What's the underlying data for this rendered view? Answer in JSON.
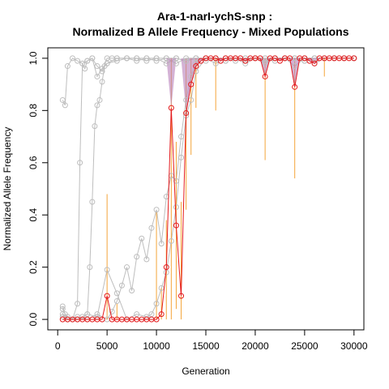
{
  "chart_data": {
    "type": "line",
    "title_line1": "Ara-1-narI-ychS-snp :",
    "title_line2": "Normalized B Allele Frequency - Mixed Populations",
    "xlabel": "Generation",
    "ylabel": "Normalized Allele Frequency",
    "xlim": [
      -1000,
      31000
    ],
    "ylim": [
      -0.04,
      1.04
    ],
    "x_ticks": [
      0,
      5000,
      10000,
      15000,
      20000,
      25000,
      30000
    ],
    "y_ticks": [
      0.0,
      0.2,
      0.4,
      0.6,
      0.8,
      1.0
    ],
    "colors": {
      "background_series": "#bebebe",
      "focus_series": "#e41a1c",
      "error_bars": "#f4a53a",
      "difference_fill": "#b77fb9"
    },
    "series": [
      {
        "role": "background",
        "x": [
          500,
          750,
          1000,
          1500,
          2000,
          2500,
          3000,
          3500,
          4000,
          4500,
          5000,
          5500,
          6000,
          7000,
          8000,
          9000,
          10000,
          11000,
          12000,
          13000,
          14000,
          15000,
          16000,
          17000,
          18000,
          19000,
          20000,
          21000,
          22000,
          23000,
          24000,
          25000,
          26000,
          27000,
          28000,
          29000,
          30000
        ],
        "values": [
          0.84,
          0.82,
          0.97,
          1.0,
          0.99,
          0.98,
          0.99,
          1.0,
          0.97,
          0.95,
          1.0,
          1.0,
          1.0,
          1.0,
          1.0,
          0.99,
          1.0,
          0.98,
          1.0,
          0.99,
          1.0,
          1.0,
          1.0,
          0.99,
          1.0,
          0.98,
          1.0,
          1.0,
          0.99,
          1.0,
          1.0,
          0.99,
          1.0,
          1.0,
          1.0,
          1.0,
          1.0
        ]
      },
      {
        "role": "background",
        "x": [
          500,
          750,
          1000,
          1500,
          2000,
          2250,
          2500,
          2750,
          3000,
          3500,
          4000,
          4500,
          5000,
          6000,
          7000,
          8000,
          9000,
          10000,
          11000,
          12000,
          13000,
          14000,
          15000,
          16000,
          17000,
          18000,
          19000,
          20000,
          21000,
          22000,
          23000,
          24000,
          25000,
          26000,
          27000,
          28000,
          29000,
          30000
        ],
        "values": [
          0.05,
          0.02,
          0.01,
          0.0,
          0.06,
          0.6,
          0.98,
          0.96,
          0.99,
          1.0,
          0.93,
          0.96,
          0.98,
          0.99,
          1.0,
          1.0,
          1.0,
          0.99,
          1.0,
          1.0,
          0.99,
          1.0,
          1.0,
          1.0,
          1.0,
          0.99,
          1.0,
          1.0,
          0.99,
          1.0,
          1.0,
          1.0,
          1.0,
          0.98,
          1.0,
          1.0,
          1.0,
          1.0
        ]
      },
      {
        "role": "background",
        "x": [
          500,
          1000,
          2000,
          2500,
          3000,
          3250,
          3500,
          3750,
          4000,
          4250,
          4500,
          4750,
          5000,
          6000,
          7000,
          8000,
          9000,
          10000,
          11000,
          12000,
          13000,
          14000,
          15000,
          16000,
          17000,
          18000,
          19000,
          20000,
          21000,
          22000,
          23000,
          24000,
          25000,
          26000,
          27000,
          28000,
          29000,
          30000
        ],
        "values": [
          0.04,
          0.0,
          0.0,
          0.01,
          0.02,
          0.2,
          0.45,
          0.74,
          0.82,
          0.84,
          0.91,
          0.97,
          0.98,
          1.0,
          1.0,
          0.99,
          1.0,
          1.0,
          1.0,
          0.98,
          1.0,
          1.0,
          0.99,
          1.0,
          1.0,
          1.0,
          0.99,
          1.0,
          1.0,
          1.0,
          1.0,
          1.0,
          0.99,
          1.0,
          1.0,
          1.0,
          1.0,
          1.0
        ]
      },
      {
        "role": "background",
        "x": [
          500,
          1000,
          2000,
          3000,
          4000,
          5000,
          5500,
          6000,
          6500,
          7000,
          7500,
          8000,
          8500,
          9000,
          9500,
          10000,
          10500,
          11000,
          11500,
          12000,
          12500,
          13000,
          13500,
          14000,
          14500,
          15000,
          16000,
          17000,
          18000,
          19000,
          20000,
          21000,
          22000,
          23000,
          24000,
          25000,
          26000,
          27000,
          28000,
          29000,
          30000
        ],
        "values": [
          0.02,
          0.0,
          0.01,
          0.0,
          0.02,
          0.0,
          0.03,
          0.07,
          0.13,
          0.2,
          0.11,
          0.24,
          0.31,
          0.23,
          0.35,
          0.42,
          0.29,
          0.47,
          0.55,
          0.53,
          0.7,
          0.84,
          0.93,
          0.98,
          0.99,
          1.0,
          1.0,
          0.99,
          1.0,
          1.0,
          1.0,
          0.99,
          1.0,
          1.0,
          1.0,
          1.0,
          1.0,
          1.0,
          1.0,
          1.0,
          1.0
        ]
      },
      {
        "role": "background",
        "x": [
          500,
          1000,
          2000,
          3000,
          4000,
          5000,
          6000,
          7000,
          8000,
          9000,
          9500,
          10000,
          10500,
          11000,
          11500,
          12000,
          12500,
          13000,
          13500,
          14000,
          15000,
          16000,
          17000,
          18000,
          19000,
          20000,
          21000,
          22000,
          23000,
          24000,
          25000,
          26000,
          27000,
          28000,
          29000,
          30000
        ],
        "values": [
          0.01,
          0.0,
          0.0,
          0.02,
          0.01,
          0.19,
          0.1,
          0.0,
          0.02,
          0.01,
          0.02,
          0.06,
          0.12,
          0.18,
          0.3,
          0.43,
          0.62,
          0.78,
          0.84,
          0.95,
          1.0,
          0.98,
          1.0,
          1.0,
          0.99,
          1.0,
          0.98,
          1.0,
          1.0,
          0.97,
          1.0,
          1.0,
          1.0,
          1.0,
          1.0,
          1.0
        ]
      },
      {
        "role": "focus",
        "x": [
          500,
          1000,
          1500,
          2000,
          2500,
          3000,
          3500,
          4000,
          4500,
          5000,
          5500,
          6000,
          6500,
          7000,
          7500,
          8000,
          8500,
          9000,
          9500,
          10000,
          10500,
          11000,
          11500,
          12000,
          12500,
          13000,
          13500,
          14000,
          14500,
          15000,
          15500,
          16000,
          16500,
          17000,
          17500,
          18000,
          18500,
          19000,
          19500,
          20000,
          20500,
          21000,
          21500,
          22000,
          22500,
          23000,
          23500,
          24000,
          24500,
          25000,
          25500,
          26000,
          26500,
          27000,
          27500,
          28000,
          28500,
          29000,
          29500,
          30000
        ],
        "values": [
          0.0,
          0.0,
          0.0,
          0.0,
          0.0,
          0.0,
          0.0,
          0.0,
          0.0,
          0.09,
          0.0,
          0.0,
          0.0,
          0.0,
          0.0,
          0.0,
          0.0,
          0.0,
          0.0,
          0.0,
          0.02,
          0.2,
          0.81,
          0.36,
          0.09,
          0.79,
          0.9,
          0.97,
          0.99,
          1.0,
          1.0,
          1.0,
          0.99,
          1.0,
          1.0,
          1.0,
          1.0,
          0.99,
          1.0,
          1.0,
          1.0,
          0.93,
          1.0,
          1.0,
          0.99,
          1.0,
          1.0,
          0.89,
          1.0,
          1.0,
          0.99,
          0.98,
          1.0,
          1.0,
          1.0,
          1.0,
          1.0,
          1.0,
          1.0,
          1.0
        ]
      }
    ],
    "error_bars": [
      {
        "x": 5000,
        "low": 0.0,
        "high": 0.48
      },
      {
        "x": 6000,
        "low": 0.0,
        "high": 0.06
      },
      {
        "x": 10000,
        "low": 0.0,
        "high": 0.41
      },
      {
        "x": 10500,
        "low": 0.0,
        "high": 0.12
      },
      {
        "x": 11000,
        "low": 0.0,
        "high": 0.38
      },
      {
        "x": 11500,
        "low": 0.0,
        "high": 1.0
      },
      {
        "x": 12000,
        "low": 0.04,
        "high": 0.68
      },
      {
        "x": 12500,
        "low": 0.0,
        "high": 0.45
      },
      {
        "x": 13000,
        "low": 0.42,
        "high": 1.0
      },
      {
        "x": 13500,
        "low": 0.63,
        "high": 1.0
      },
      {
        "x": 14000,
        "low": 0.81,
        "high": 1.0
      },
      {
        "x": 16000,
        "low": 0.8,
        "high": 1.0
      },
      {
        "x": 21000,
        "low": 0.61,
        "high": 1.0
      },
      {
        "x": 24000,
        "low": 0.54,
        "high": 1.0
      },
      {
        "x": 27000,
        "low": 0.93,
        "high": 1.0
      }
    ]
  }
}
